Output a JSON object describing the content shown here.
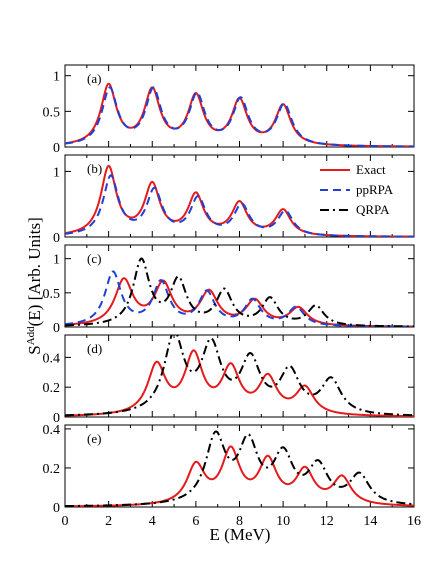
{
  "chart_data": {
    "type": "line",
    "title": "",
    "xlabel": "E (MeV)",
    "ylabel_main": "S",
    "ylabel_sup": "Add",
    "ylabel_rest": "(E) [Arb. Units]",
    "xlim": [
      0,
      16
    ],
    "x_ticks": [
      "0",
      "2",
      "4",
      "6",
      "8",
      "10",
      "12",
      "14",
      "16"
    ],
    "legend": {
      "placement": "right",
      "entries": [
        {
          "label": "Exact",
          "color": "#e41a1c",
          "style": "solid"
        },
        {
          "label": "ppRPA",
          "color": "#1f3fd6",
          "style": "dashed"
        },
        {
          "label": "QRPA",
          "color": "#000000",
          "style": "dashdot"
        }
      ]
    },
    "panels": [
      {
        "tag": "(a)",
        "ylim": [
          0,
          1.15
        ],
        "y_ticks": [
          "0",
          "0.5",
          "1"
        ],
        "y_tick_values": [
          0,
          0.5,
          1
        ],
        "series": [
          {
            "key": "Exact",
            "color": "#e41a1c",
            "dash": "",
            "peaks": [
              [
                2.0,
                0.84,
                0.43
              ],
              [
                4.0,
                0.76,
                0.43
              ],
              [
                6.0,
                0.68,
                0.43
              ],
              [
                8.0,
                0.62,
                0.43
              ],
              [
                10.0,
                0.56,
                0.43
              ]
            ]
          },
          {
            "key": "ppRPA",
            "color": "#1f3fd6",
            "dash": "8,5",
            "peaks": [
              [
                2.05,
                0.79,
                0.43
              ],
              [
                4.05,
                0.76,
                0.43
              ],
              [
                6.05,
                0.69,
                0.43
              ],
              [
                8.05,
                0.63,
                0.43
              ],
              [
                10.05,
                0.57,
                0.43
              ]
            ]
          }
        ]
      },
      {
        "tag": "(b)",
        "ylim": [
          0,
          1.25
        ],
        "y_ticks": [
          "0",
          "1"
        ],
        "y_tick_values": [
          0,
          1
        ],
        "series": [
          {
            "key": "Exact",
            "color": "#e41a1c",
            "dash": "",
            "peaks": [
              [
                2.0,
                1.04,
                0.43
              ],
              [
                4.0,
                0.76,
                0.43
              ],
              [
                6.0,
                0.61,
                0.43
              ],
              [
                8.0,
                0.49,
                0.43
              ],
              [
                10.0,
                0.39,
                0.43
              ]
            ]
          },
          {
            "key": "ppRPA",
            "color": "#1f3fd6",
            "dash": "8,5",
            "peaks": [
              [
                2.1,
                0.9,
                0.43
              ],
              [
                4.1,
                0.68,
                0.43
              ],
              [
                6.1,
                0.56,
                0.43
              ],
              [
                8.1,
                0.46,
                0.43
              ],
              [
                10.1,
                0.37,
                0.43
              ]
            ]
          },
          {
            "key": "QRPA",
            "color": "#000000",
            "dash": "9,4,2,4",
            "peaks": []
          }
        ]
      },
      {
        "tag": "(c)",
        "ylim": [
          0,
          1.2
        ],
        "y_ticks": [
          "0",
          "0.5",
          "1"
        ],
        "y_tick_values": [
          0,
          0.5,
          1
        ],
        "series": [
          {
            "key": "Exact",
            "color": "#e41a1c",
            "dash": "",
            "peaks": [
              [
                2.7,
                0.66,
                0.5
              ],
              [
                4.5,
                0.6,
                0.5
              ],
              [
                6.6,
                0.48,
                0.5
              ],
              [
                8.7,
                0.36,
                0.5
              ],
              [
                10.7,
                0.26,
                0.5
              ]
            ]
          },
          {
            "key": "ppRPA",
            "color": "#1f3fd6",
            "dash": "8,5",
            "peaks": [
              [
                2.2,
                0.78,
                0.45
              ],
              [
                4.4,
                0.63,
                0.45
              ],
              [
                6.5,
                0.48,
                0.45
              ],
              [
                8.6,
                0.37,
                0.45
              ],
              [
                10.6,
                0.27,
                0.45
              ]
            ]
          },
          {
            "key": "QRPA",
            "color": "#000000",
            "dash": "9,4,2,4",
            "peaks": [
              [
                3.5,
                0.95,
                0.45
              ],
              [
                5.2,
                0.65,
                0.45
              ],
              [
                7.3,
                0.5,
                0.45
              ],
              [
                9.4,
                0.39,
                0.45
              ],
              [
                11.5,
                0.29,
                0.45
              ]
            ]
          }
        ]
      },
      {
        "tag": "(d)",
        "ylim": [
          0,
          0.55
        ],
        "y_ticks": [
          "0",
          "0.2",
          "0.4"
        ],
        "y_tick_values": [
          0,
          0.2,
          0.4
        ],
        "series": [
          {
            "key": "Exact",
            "color": "#e41a1c",
            "dash": "",
            "peaks": [
              [
                4.2,
                0.33,
                0.5
              ],
              [
                5.9,
                0.39,
                0.5
              ],
              [
                7.6,
                0.3,
                0.5
              ],
              [
                9.3,
                0.24,
                0.5
              ],
              [
                11.0,
                0.18,
                0.5
              ]
            ]
          },
          {
            "key": "QRPA",
            "color": "#000000",
            "dash": "9,4,2,4",
            "peaks": [
              [
                5.0,
                0.52,
                0.55
              ],
              [
                6.7,
                0.44,
                0.55
              ],
              [
                8.5,
                0.35,
                0.55
              ],
              [
                10.3,
                0.28,
                0.55
              ],
              [
                12.2,
                0.23,
                0.55
              ]
            ]
          }
        ]
      },
      {
        "tag": "(e)",
        "ylim": [
          0,
          0.42
        ],
        "y_ticks": [
          "0",
          "0.2",
          "0.4"
        ],
        "y_tick_values": [
          0,
          0.2,
          0.4
        ],
        "series": [
          {
            "key": "Exact",
            "color": "#e41a1c",
            "dash": "",
            "peaks": [
              [
                6.0,
                0.2,
                0.5
              ],
              [
                7.6,
                0.27,
                0.5
              ],
              [
                9.3,
                0.22,
                0.5
              ],
              [
                11.0,
                0.17,
                0.5
              ],
              [
                12.7,
                0.14,
                0.5
              ]
            ]
          },
          {
            "key": "QRPA",
            "color": "#000000",
            "dash": "9,4,2,4",
            "peaks": [
              [
                6.9,
                0.34,
                0.55
              ],
              [
                8.4,
                0.3,
                0.55
              ],
              [
                10.0,
                0.24,
                0.55
              ],
              [
                11.6,
                0.19,
                0.55
              ],
              [
                13.5,
                0.15,
                0.55
              ]
            ]
          }
        ]
      }
    ]
  }
}
